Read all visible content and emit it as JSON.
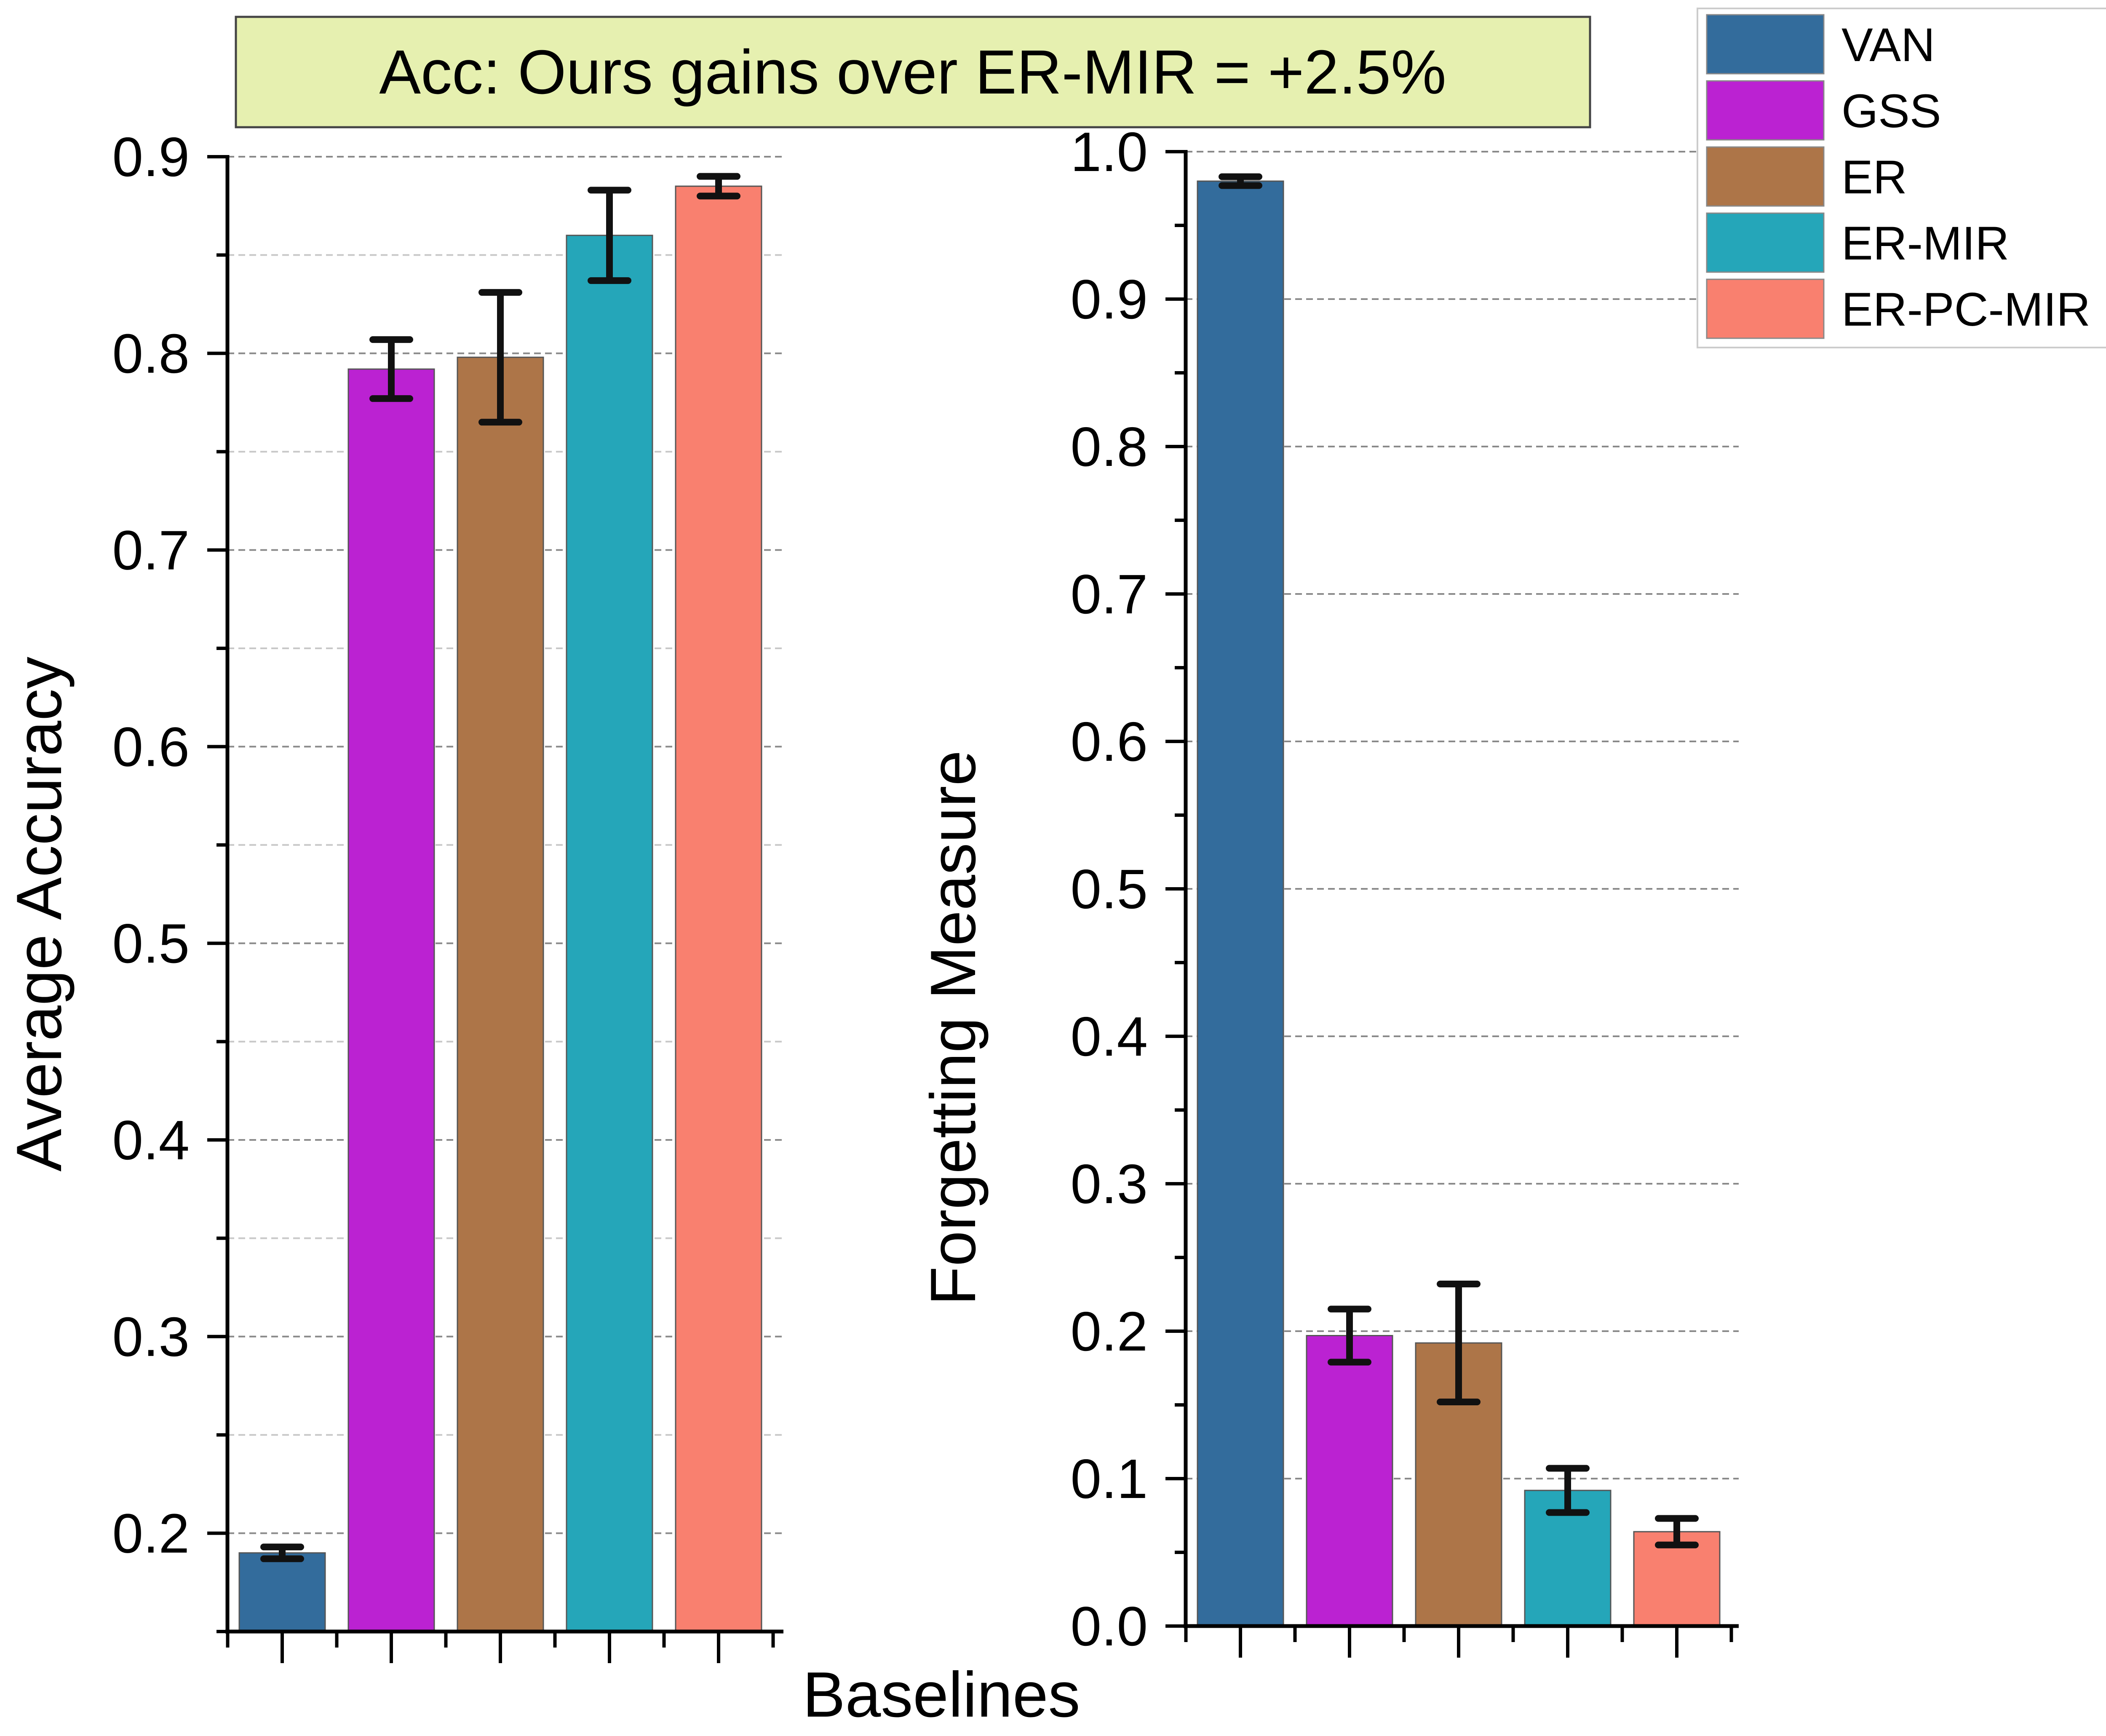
{
  "annotation": "Acc: Ours gains over ER-MIR = +2.5%",
  "xlabel": "Baselines",
  "legend": [
    {
      "label": "VAN",
      "color": "#336c9c"
    },
    {
      "label": "GSS",
      "color": "#bb22d2"
    },
    {
      "label": "ER",
      "color": "#ad7548"
    },
    {
      "label": "ER-MIR",
      "color": "#25a6b9"
    },
    {
      "label": "ER-PC-MIR",
      "color": "#f9806f"
    }
  ],
  "chart_data": [
    {
      "type": "bar",
      "ylabel": "Average Accuracy",
      "categories": [
        "VAN",
        "GSS",
        "ER",
        "ER-MIR",
        "ER-PC-MIR"
      ],
      "values": [
        0.19,
        0.792,
        0.798,
        0.86,
        0.885
      ],
      "errors": [
        0.003,
        0.015,
        0.033,
        0.023,
        0.005
      ],
      "ylim": [
        0.15,
        0.9
      ],
      "yticks": [
        "0.2",
        "0.3",
        "0.4",
        "0.5",
        "0.6",
        "0.7",
        "0.8",
        "0.9"
      ],
      "grid": true
    },
    {
      "type": "bar",
      "ylabel": "Forgetting Measure",
      "categories": [
        "VAN",
        "GSS",
        "ER",
        "ER-MIR",
        "ER-PC-MIR"
      ],
      "values": [
        0.98,
        0.197,
        0.192,
        0.092,
        0.064
      ],
      "errors": [
        0.003,
        0.018,
        0.04,
        0.015,
        0.009
      ],
      "ylim": [
        0.0,
        1.0
      ],
      "yticks": [
        "0.0",
        "0.1",
        "0.2",
        "0.3",
        "0.4",
        "0.5",
        "0.6",
        "0.7",
        "0.8",
        "0.9",
        "1.0"
      ],
      "grid": true
    }
  ]
}
